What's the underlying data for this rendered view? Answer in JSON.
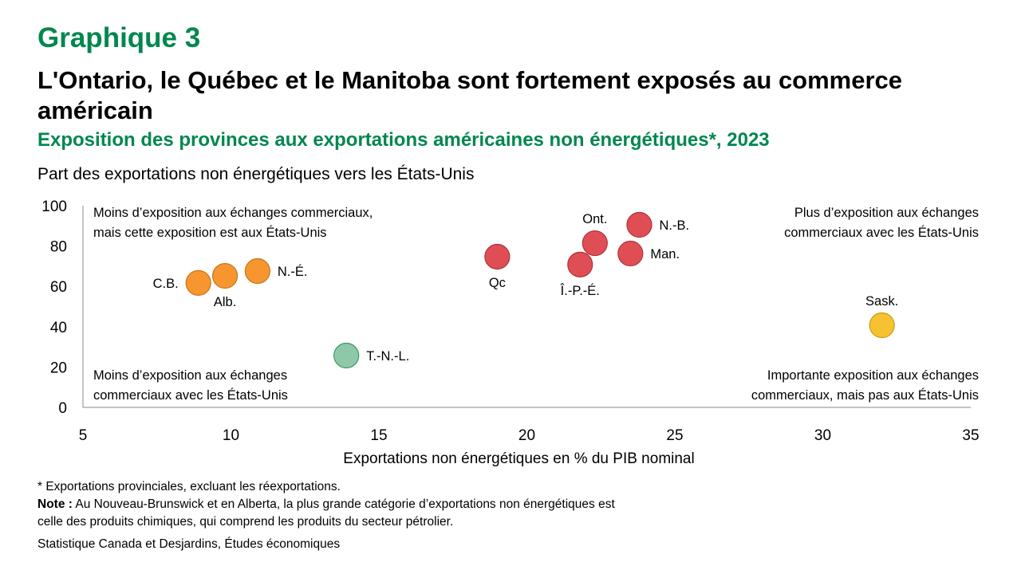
{
  "header": {
    "number": "Graphique 3",
    "title": "L'Ontario, le Québec et le Manitoba sont fortement exposés au commerce américain",
    "subtitle": "Exposition des provinces aux exportations américaines non énergétiques*, 2023",
    "y_axis_label": "Part des exportations non énergétiques vers les États-Unis"
  },
  "chart_data": {
    "type": "scatter",
    "xlabel": "Exportations non énergétiques en % du PIB nominal",
    "ylabel": "Part des exportations non énergétiques vers les États-Unis",
    "xlim": [
      5,
      35
    ],
    "ylim": [
      0,
      100
    ],
    "xticks": [
      "5",
      "10",
      "15",
      "20",
      "25",
      "30",
      "35"
    ],
    "yticks": [
      "0",
      "20",
      "40",
      "60",
      "80",
      "100"
    ],
    "points": [
      {
        "label": "C.B.",
        "x": 8.9,
        "y": 61.7,
        "group": "orange",
        "pos": "left"
      },
      {
        "label": "Alb.",
        "x": 9.8,
        "y": 65.2,
        "group": "orange",
        "pos": "below"
      },
      {
        "label": "N.-É.",
        "x": 10.9,
        "y": 67.6,
        "group": "orange",
        "pos": "right"
      },
      {
        "label": "T.-N.-L.",
        "x": 13.9,
        "y": 25.7,
        "group": "green",
        "pos": "right"
      },
      {
        "label": "Qc",
        "x": 19.0,
        "y": 74.7,
        "group": "red",
        "pos": "below"
      },
      {
        "label": "Î.-P.-É.",
        "x": 21.8,
        "y": 70.8,
        "group": "red",
        "pos": "below"
      },
      {
        "label": "Ont.",
        "x": 22.3,
        "y": 81.4,
        "group": "red",
        "pos": "above"
      },
      {
        "label": "Man.",
        "x": 23.5,
        "y": 76.3,
        "group": "red",
        "pos": "right"
      },
      {
        "label": "N.-B.",
        "x": 23.8,
        "y": 90.5,
        "group": "red",
        "pos": "right"
      },
      {
        "label": "Sask.",
        "x": 32.0,
        "y": 40.7,
        "group": "yellow",
        "pos": "above"
      }
    ],
    "colors": {
      "orange": "#F7962F",
      "red": "#E04E55",
      "green": "#8FC8A8",
      "yellow": "#F6C232"
    },
    "strokes": {
      "orange": "#C8741E",
      "red": "#B0323A",
      "green": "#3A9A66",
      "yellow": "#C99A1C"
    },
    "quadrants": {
      "top_left": [
        "Moins d’exposition aux échanges commerciaux,",
        "mais cette exposition est aux États-Unis"
      ],
      "top_right": [
        "Plus d’exposition aux échanges",
        "commerciaux avec les États-Unis"
      ],
      "bottom_left": [
        "Moins d’exposition aux échanges",
        "commerciaux avec les États-Unis"
      ],
      "bottom_right": [
        "Importante exposition aux échanges",
        "commerciaux, mais pas aux États-Unis"
      ]
    }
  },
  "footer": {
    "asterisk": "* Exportations provinciales, excluant les réexportations.",
    "note_label": "Note :",
    "note_text": " Au Nouveau-Brunswick et en Alberta, la plus grande catégorie d’exportations non énergétiques est",
    "note_text2": "celle des produits chimiques, qui comprend les produits du secteur pétrolier.",
    "source": "Statistique Canada et Desjardins, Études économiques"
  }
}
